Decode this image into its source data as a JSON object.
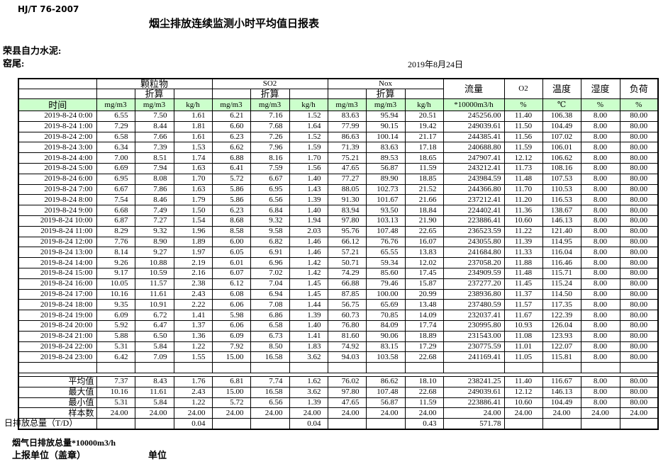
{
  "page": {
    "standard_no": "HJ/T  76-2007",
    "title": "烟尘排放连续监测小时平均值日报表",
    "company": "荣县自力水泥:",
    "location": "窑尾:",
    "date": "2019年8月24日"
  },
  "table": {
    "time_header": "时间",
    "converted_label": "折算",
    "groups": [
      "颗粒物",
      "SO2",
      "Nox"
    ],
    "right_headers": [
      "流量",
      "O2",
      "温度",
      "湿度",
      "负荷"
    ],
    "units": [
      "mg/m3",
      "mg/m3",
      "kg/h",
      "mg/m3",
      "mg/m3",
      "kg/h",
      "mg/m3",
      "mg/m3",
      "kg/h",
      "*10000m3/h",
      "%",
      "℃",
      "%",
      "%"
    ],
    "rows": [
      {
        "time": "2019-8-24 0:00",
        "v": [
          "6.55",
          "7.50",
          "1.61",
          "6.21",
          "7.16",
          "1.52",
          "83.63",
          "95.94",
          "20.51",
          "245256.00",
          "11.40",
          "106.38",
          "8.00",
          "80.00"
        ]
      },
      {
        "time": "2019-8-24 1:00",
        "v": [
          "7.29",
          "8.44",
          "1.81",
          "6.60",
          "7.68",
          "1.64",
          "77.99",
          "90.15",
          "19.42",
          "249039.61",
          "11.50",
          "104.49",
          "8.00",
          "80.00"
        ]
      },
      {
        "time": "2019-8-24 2:00",
        "v": [
          "6.58",
          "7.66",
          "1.61",
          "6.23",
          "7.26",
          "1.52",
          "86.63",
          "100.14",
          "21.17",
          "244385.41",
          "11.56",
          "107.02",
          "8.00",
          "80.00"
        ]
      },
      {
        "time": "2019-8-24 3:00",
        "v": [
          "6.34",
          "7.39",
          "1.53",
          "6.62",
          "7.96",
          "1.59",
          "71.39",
          "83.63",
          "17.18",
          "240688.80",
          "11.59",
          "106.01",
          "8.00",
          "80.00"
        ]
      },
      {
        "time": "2019-8-24 4:00",
        "v": [
          "7.00",
          "8.51",
          "1.74",
          "6.88",
          "8.16",
          "1.70",
          "75.21",
          "89.53",
          "18.65",
          "247907.41",
          "12.12",
          "106.62",
          "8.00",
          "80.00"
        ]
      },
      {
        "time": "2019-8-24 5:00",
        "v": [
          "6.69",
          "7.94",
          "1.63",
          "6.41",
          "7.59",
          "1.56",
          "47.65",
          "56.87",
          "11.59",
          "243212.41",
          "11.73",
          "108.16",
          "8.00",
          "80.00"
        ]
      },
      {
        "time": "2019-8-24 6:00",
        "v": [
          "6.95",
          "8.08",
          "1.70",
          "5.72",
          "6.67",
          "1.40",
          "77.27",
          "89.90",
          "18.85",
          "243984.59",
          "11.48",
          "107.53",
          "8.00",
          "80.00"
        ]
      },
      {
        "time": "2019-8-24 7:00",
        "v": [
          "6.67",
          "7.86",
          "1.63",
          "5.86",
          "6.95",
          "1.43",
          "88.05",
          "102.73",
          "21.52",
          "244366.80",
          "11.70",
          "110.53",
          "8.00",
          "80.00"
        ]
      },
      {
        "time": "2019-8-24 8:00",
        "v": [
          "7.54",
          "8.46",
          "1.79",
          "5.86",
          "6.56",
          "1.39",
          "91.30",
          "101.67",
          "21.66",
          "237212.41",
          "11.20",
          "116.53",
          "8.00",
          "80.00"
        ]
      },
      {
        "time": "2019-8-24 9:00",
        "v": [
          "6.68",
          "7.49",
          "1.50",
          "6.23",
          "6.84",
          "1.40",
          "83.94",
          "93.50",
          "18.84",
          "224402.41",
          "11.36",
          "138.67",
          "8.00",
          "80.00"
        ]
      },
      {
        "time": "2019-8-24 10:00",
        "v": [
          "6.87",
          "7.27",
          "1.54",
          "8.68",
          "9.32",
          "1.94",
          "97.80",
          "103.13",
          "21.90",
          "223886.41",
          "10.60",
          "146.13",
          "8.00",
          "80.00"
        ]
      },
      {
        "time": "2019-8-24 11:00",
        "v": [
          "8.29",
          "9.32",
          "1.96",
          "8.58",
          "9.58",
          "2.03",
          "95.76",
          "107.48",
          "22.65",
          "236523.59",
          "11.22",
          "121.40",
          "8.00",
          "80.00"
        ]
      },
      {
        "time": "2019-8-24 12:00",
        "v": [
          "7.76",
          "8.90",
          "1.89",
          "6.00",
          "6.82",
          "1.46",
          "66.12",
          "76.76",
          "16.07",
          "243055.80",
          "11.39",
          "114.95",
          "8.00",
          "80.00"
        ]
      },
      {
        "time": "2019-8-24 13:00",
        "v": [
          "8.14",
          "9.27",
          "1.97",
          "6.05",
          "6.91",
          "1.46",
          "57.21",
          "65.55",
          "13.83",
          "241684.80",
          "11.33",
          "116.04",
          "8.00",
          "80.00"
        ]
      },
      {
        "time": "2019-8-24 14:00",
        "v": [
          "9.26",
          "10.88",
          "2.19",
          "6.01",
          "6.96",
          "1.42",
          "50.71",
          "59.34",
          "12.02",
          "237058.20",
          "11.88",
          "116.46",
          "8.00",
          "80.00"
        ]
      },
      {
        "time": "2019-8-24 15:00",
        "v": [
          "9.17",
          "10.59",
          "2.16",
          "6.07",
          "7.02",
          "1.42",
          "74.29",
          "85.60",
          "17.45",
          "234909.59",
          "11.48",
          "115.71",
          "8.00",
          "80.00"
        ]
      },
      {
        "time": "2019-8-24 16:00",
        "v": [
          "10.05",
          "11.57",
          "2.38",
          "6.12",
          "7.04",
          "1.45",
          "66.88",
          "79.46",
          "15.87",
          "237277.20",
          "11.45",
          "115.24",
          "8.00",
          "80.00"
        ]
      },
      {
        "time": "2019-8-24 17:00",
        "v": [
          "10.16",
          "11.61",
          "2.43",
          "6.08",
          "6.94",
          "1.45",
          "87.85",
          "100.00",
          "20.99",
          "238936.80",
          "11.37",
          "114.50",
          "8.00",
          "80.00"
        ]
      },
      {
        "time": "2019-8-24 18:00",
        "v": [
          "9.35",
          "10.91",
          "2.22",
          "6.06",
          "7.08",
          "1.44",
          "56.75",
          "65.69",
          "13.48",
          "237480.59",
          "11.57",
          "117.35",
          "8.00",
          "80.00"
        ]
      },
      {
        "time": "2019-8-24 19:00",
        "v": [
          "6.09",
          "6.72",
          "1.41",
          "5.98",
          "6.86",
          "1.39",
          "60.73",
          "70.85",
          "14.09",
          "232037.41",
          "11.67",
          "122.39",
          "8.00",
          "80.00"
        ]
      },
      {
        "time": "2019-8-24 20:00",
        "v": [
          "5.92",
          "6.47",
          "1.37",
          "6.06",
          "6.58",
          "1.40",
          "76.80",
          "84.09",
          "17.74",
          "230995.80",
          "10.93",
          "126.04",
          "8.00",
          "80.00"
        ]
      },
      {
        "time": "2019-8-24 21:00",
        "v": [
          "5.88",
          "6.50",
          "1.36",
          "6.09",
          "6.73",
          "1.41",
          "81.60",
          "90.06",
          "18.89",
          "231543.00",
          "11.08",
          "123.93",
          "8.00",
          "80.00"
        ]
      },
      {
        "time": "2019-8-24 22:00",
        "v": [
          "5.31",
          "5.84",
          "1.22",
          "7.92",
          "8.50",
          "1.83",
          "74.92",
          "83.15",
          "17.29",
          "230775.59",
          "11.01",
          "122.07",
          "8.00",
          "80.00"
        ]
      },
      {
        "time": "2019-8-24 23:00",
        "v": [
          "6.42",
          "7.09",
          "1.55",
          "15.00",
          "16.58",
          "3.62",
          "94.03",
          "103.58",
          "22.68",
          "241169.41",
          "11.05",
          "115.81",
          "8.00",
          "80.00"
        ]
      }
    ],
    "summary": [
      {
        "label": "平均值",
        "v": [
          "7.37",
          "8.43",
          "1.76",
          "6.81",
          "7.74",
          "1.62",
          "76.02",
          "86.62",
          "18.10",
          "238241.25",
          "11.40",
          "116.67",
          "8.00",
          "80.00"
        ]
      },
      {
        "label": "最大值",
        "v": [
          "10.16",
          "11.61",
          "2.43",
          "15.00",
          "16.58",
          "3.62",
          "97.80",
          "107.48",
          "22.68",
          "249039.61",
          "12.12",
          "146.13",
          "8.00",
          "80.00"
        ]
      },
      {
        "label": "最小值",
        "v": [
          "5.31",
          "5.84",
          "1.22",
          "5.72",
          "6.56",
          "1.39",
          "47.65",
          "56.87",
          "11.59",
          "223886.41",
          "10.60",
          "104.49",
          "8.00",
          "80.00"
        ]
      },
      {
        "label": "样本数",
        "v": [
          "24.00",
          "24.00",
          "24.00",
          "24.00",
          "24.00",
          "24.00",
          "24.00",
          "24.00",
          "24.00",
          "24.00",
          "24.00",
          "24.00",
          "24.00",
          "24.00"
        ]
      },
      {
        "label": "日排放总量（T/D）",
        "v": [
          "",
          "",
          "0.04",
          "",
          "",
          "0.04",
          "",
          "",
          "0.43",
          "571.78",
          "",
          "",
          "",
          ""
        ]
      }
    ]
  },
  "footer": {
    "total_note": "烟气日排放总量*10000m3/h",
    "report_unit": "上报单位（盖章）",
    "unit": "单位"
  },
  "colors": {
    "header_green": "#ccffcc",
    "border": "#000000"
  }
}
